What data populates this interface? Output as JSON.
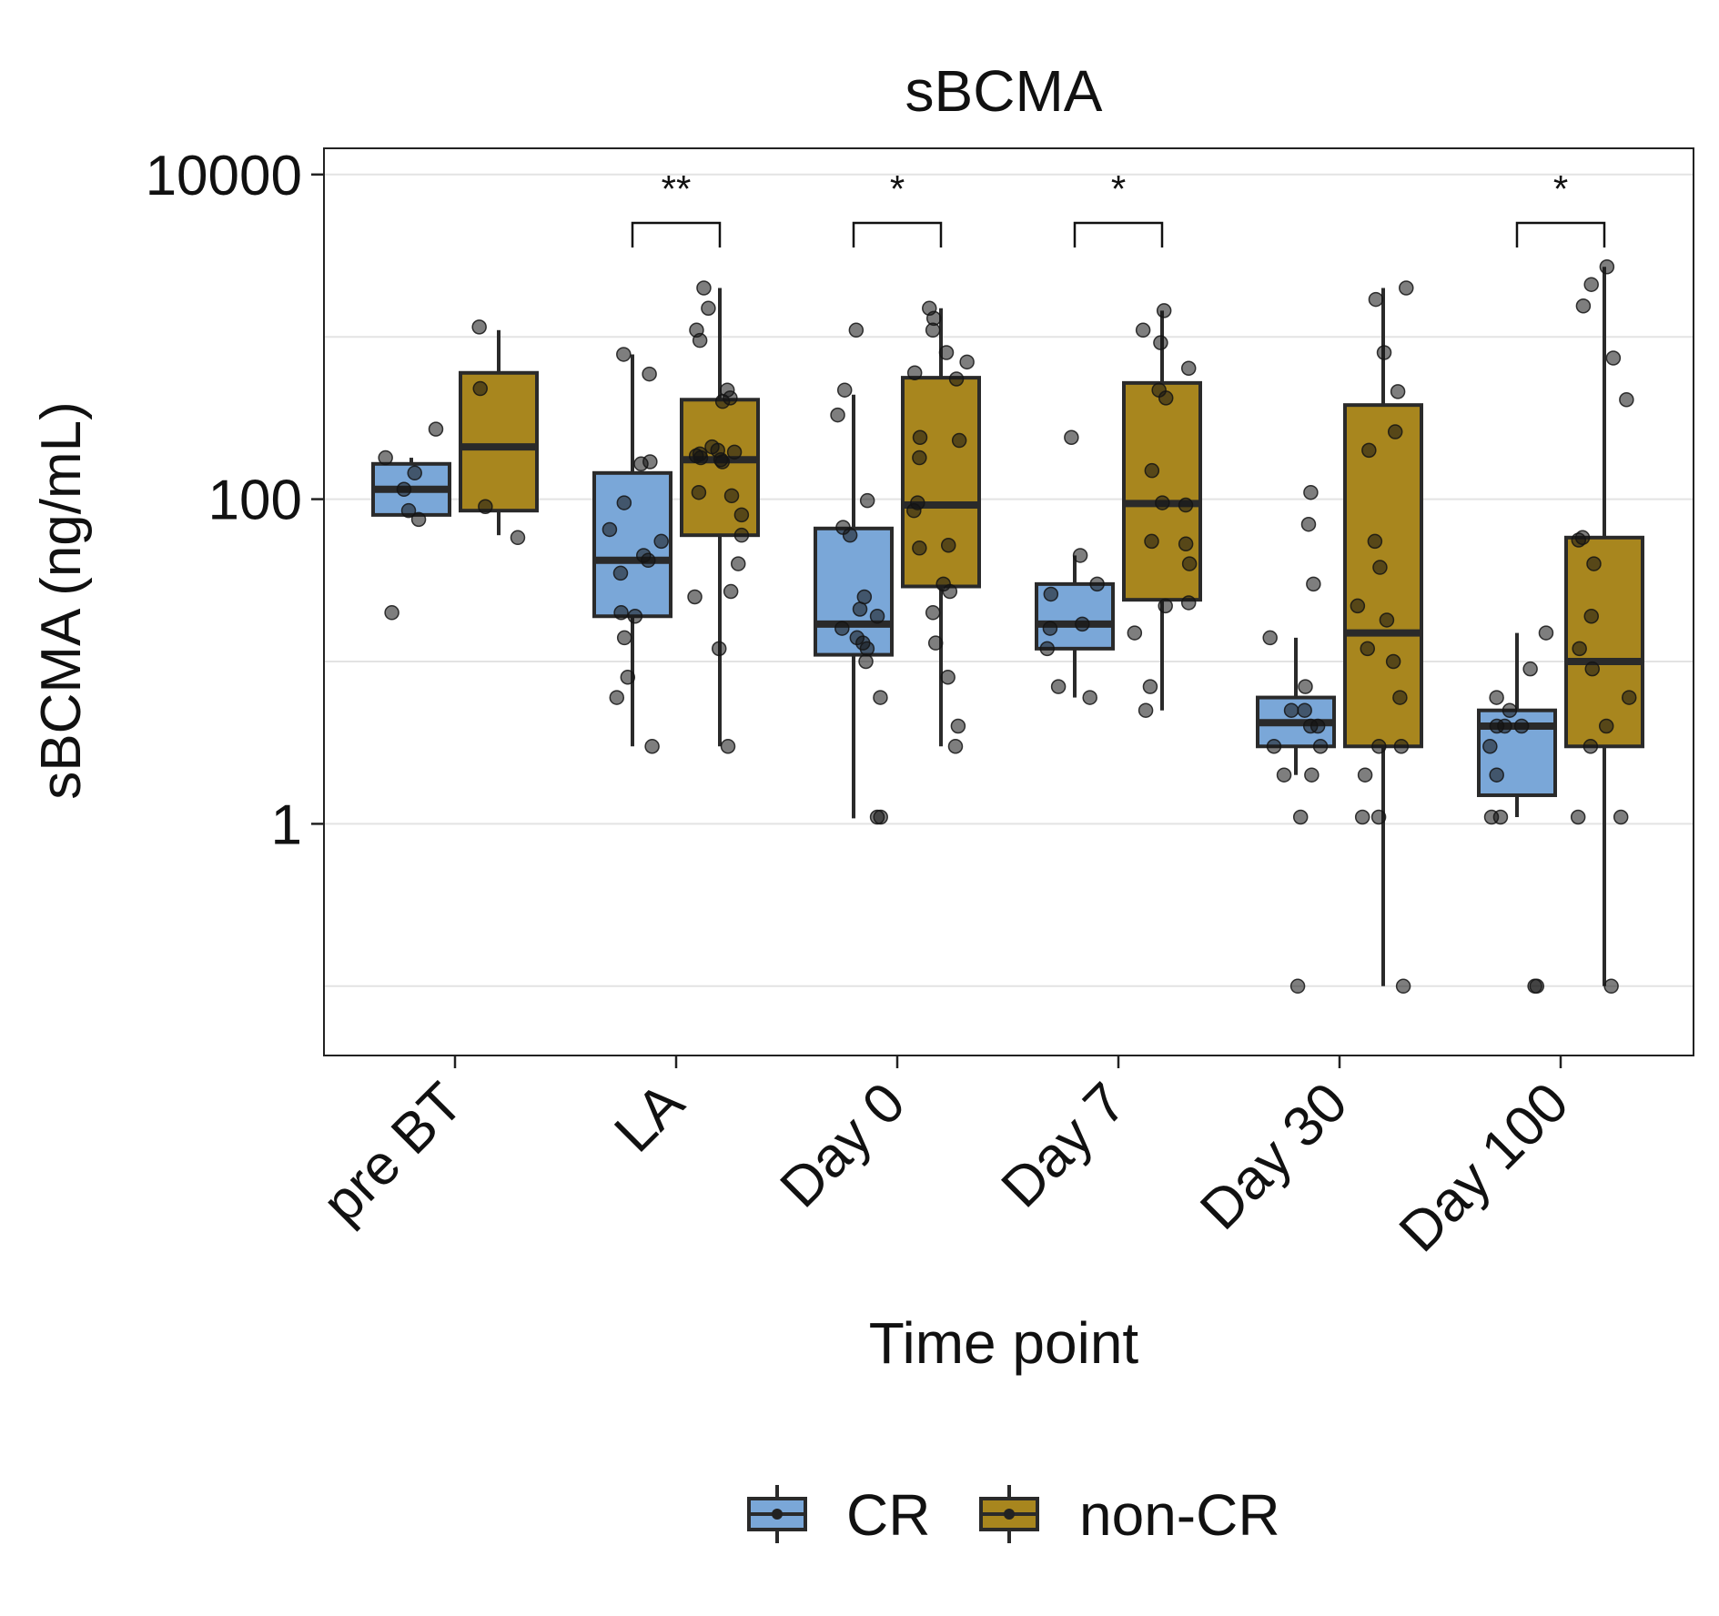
{
  "chart_data": {
    "type": "box",
    "title": "sBCMA",
    "xlabel": "Time point",
    "ylabel": "sBCMA (ng/mL)",
    "y_scale": "log10",
    "ylim": [
      0.0374,
      14500
    ],
    "y_ticks": [
      1,
      100,
      10000
    ],
    "y_tick_labels": [
      "1",
      "100",
      "10000"
    ],
    "minor_grid": [
      0.1,
      10,
      1000
    ],
    "categories": [
      "pre BT",
      "LA",
      "Day 0",
      "Day 7",
      "Day 30",
      "Day 100"
    ],
    "legend": {
      "position": "bottom",
      "entries": [
        "CR",
        "non-CR"
      ]
    },
    "colors": {
      "CR": "#7aa7d8",
      "non-CR": "#a8861e"
    },
    "significance": [
      {
        "category": "LA",
        "label": "**"
      },
      {
        "category": "Day 0",
        "label": "*"
      },
      {
        "category": "Day 7",
        "label": "*"
      },
      {
        "category": "Day 100",
        "label": "*"
      }
    ],
    "series": [
      {
        "name": "CR",
        "boxes": [
          {
            "category": "pre BT",
            "q1": 80,
            "median": 115,
            "q3": 165,
            "whisker_low": 80,
            "whisker_high": 180
          },
          {
            "category": "LA",
            "q1": 19,
            "median": 42,
            "q3": 145,
            "whisker_low": 3,
            "whisker_high": 780
          },
          {
            "category": "Day 0",
            "q1": 11,
            "median": 17,
            "q3": 66,
            "whisker_low": 1.08,
            "whisker_high": 440
          },
          {
            "category": "Day 7",
            "q1": 12,
            "median": 17,
            "q3": 30,
            "whisker_low": 6,
            "whisker_high": 45
          },
          {
            "category": "Day 30",
            "q1": 3,
            "median": 4.2,
            "q3": 6,
            "whisker_low": 2,
            "whisker_high": 14
          },
          {
            "category": "Day 100",
            "q1": 1.5,
            "median": 4,
            "q3": 5,
            "whisker_low": 1.1,
            "whisker_high": 15
          }
        ],
        "points": [
          {
            "category": "pre BT",
            "values": [
              270,
              180,
              145,
              115,
              85,
              75,
              20
            ]
          },
          {
            "category": "LA",
            "values": [
              780,
              590,
              170,
              165,
              95,
              65,
              55,
              45,
              42,
              35,
              20,
              19,
              14,
              8,
              6,
              3
            ]
          },
          {
            "category": "Day 0",
            "values": [
              1100,
              470,
              330,
              98,
              67,
              60,
              25,
              21,
              19,
              16,
              14,
              13,
              12,
              10,
              6,
              1.1,
              1.1
            ]
          },
          {
            "category": "Day 7",
            "values": [
              240,
              45,
              30,
              26,
              17,
              16,
              12,
              7,
              6
            ]
          },
          {
            "category": "Day 30",
            "values": [
              110,
              70,
              30,
              14,
              7,
              5,
              5,
              4,
              4,
              3,
              3,
              2,
              2,
              1.1,
              0.1
            ]
          },
          {
            "category": "Day 100",
            "values": [
              15,
              9,
              6,
              5,
              4,
              4,
              4,
              3,
              2,
              1.1,
              1.1,
              0.1,
              0.1
            ]
          }
        ]
      },
      {
        "name": "non-CR",
        "boxes": [
          {
            "category": "pre BT",
            "q1": 85,
            "median": 210,
            "q3": 600,
            "whisker_low": 60,
            "whisker_high": 1100
          },
          {
            "category": "LA",
            "q1": 60,
            "median": 175,
            "q3": 410,
            "whisker_low": 3,
            "whisker_high": 2000
          },
          {
            "category": "Day 0",
            "q1": 29,
            "median": 92,
            "q3": 560,
            "whisker_low": 3,
            "whisker_high": 1500
          },
          {
            "category": "Day 7",
            "q1": 24,
            "median": 94,
            "q3": 520,
            "whisker_low": 5,
            "whisker_high": 1450
          },
          {
            "category": "Day 30",
            "q1": 3,
            "median": 15,
            "q3": 380,
            "whisker_low": 0.1,
            "whisker_high": 2000
          },
          {
            "category": "Day 100",
            "q1": 3,
            "median": 10,
            "q3": 58,
            "whisker_low": 0.1,
            "whisker_high": 2700
          }
        ],
        "points": [
          {
            "category": "pre BT",
            "values": [
              1150,
              480,
              90,
              58
            ]
          },
          {
            "category": "LA",
            "values": [
              2000,
              1500,
              1100,
              950,
              470,
              420,
              400,
              210,
              200,
              195,
              190,
              185,
              180,
              175,
              170,
              110,
              105,
              80,
              60,
              40,
              27,
              25,
              12,
              3
            ]
          },
          {
            "category": "Day 0",
            "values": [
              1500,
              1300,
              1100,
              800,
              700,
              600,
              550,
              240,
              230,
              180,
              95,
              85,
              52,
              50,
              30,
              27,
              20,
              13,
              8,
              4,
              3
            ]
          },
          {
            "category": "Day 7",
            "values": [
              1450,
              1100,
              920,
              640,
              470,
              420,
              150,
              95,
              92,
              55,
              53,
              40,
              23,
              22,
              15,
              7,
              5
            ]
          },
          {
            "category": "Day 30",
            "values": [
              2000,
              1700,
              800,
              460,
              260,
              200,
              55,
              38,
              22,
              18,
              12,
              10,
              6,
              3,
              3,
              2,
              1.1,
              1.1,
              0.1
            ]
          },
          {
            "category": "Day 100",
            "values": [
              2700,
              2100,
              1550,
              740,
              410,
              58,
              56,
              40,
              19,
              12,
              9,
              6,
              4,
              3,
              1.1,
              1.1,
              0.1
            ]
          }
        ]
      }
    ]
  }
}
